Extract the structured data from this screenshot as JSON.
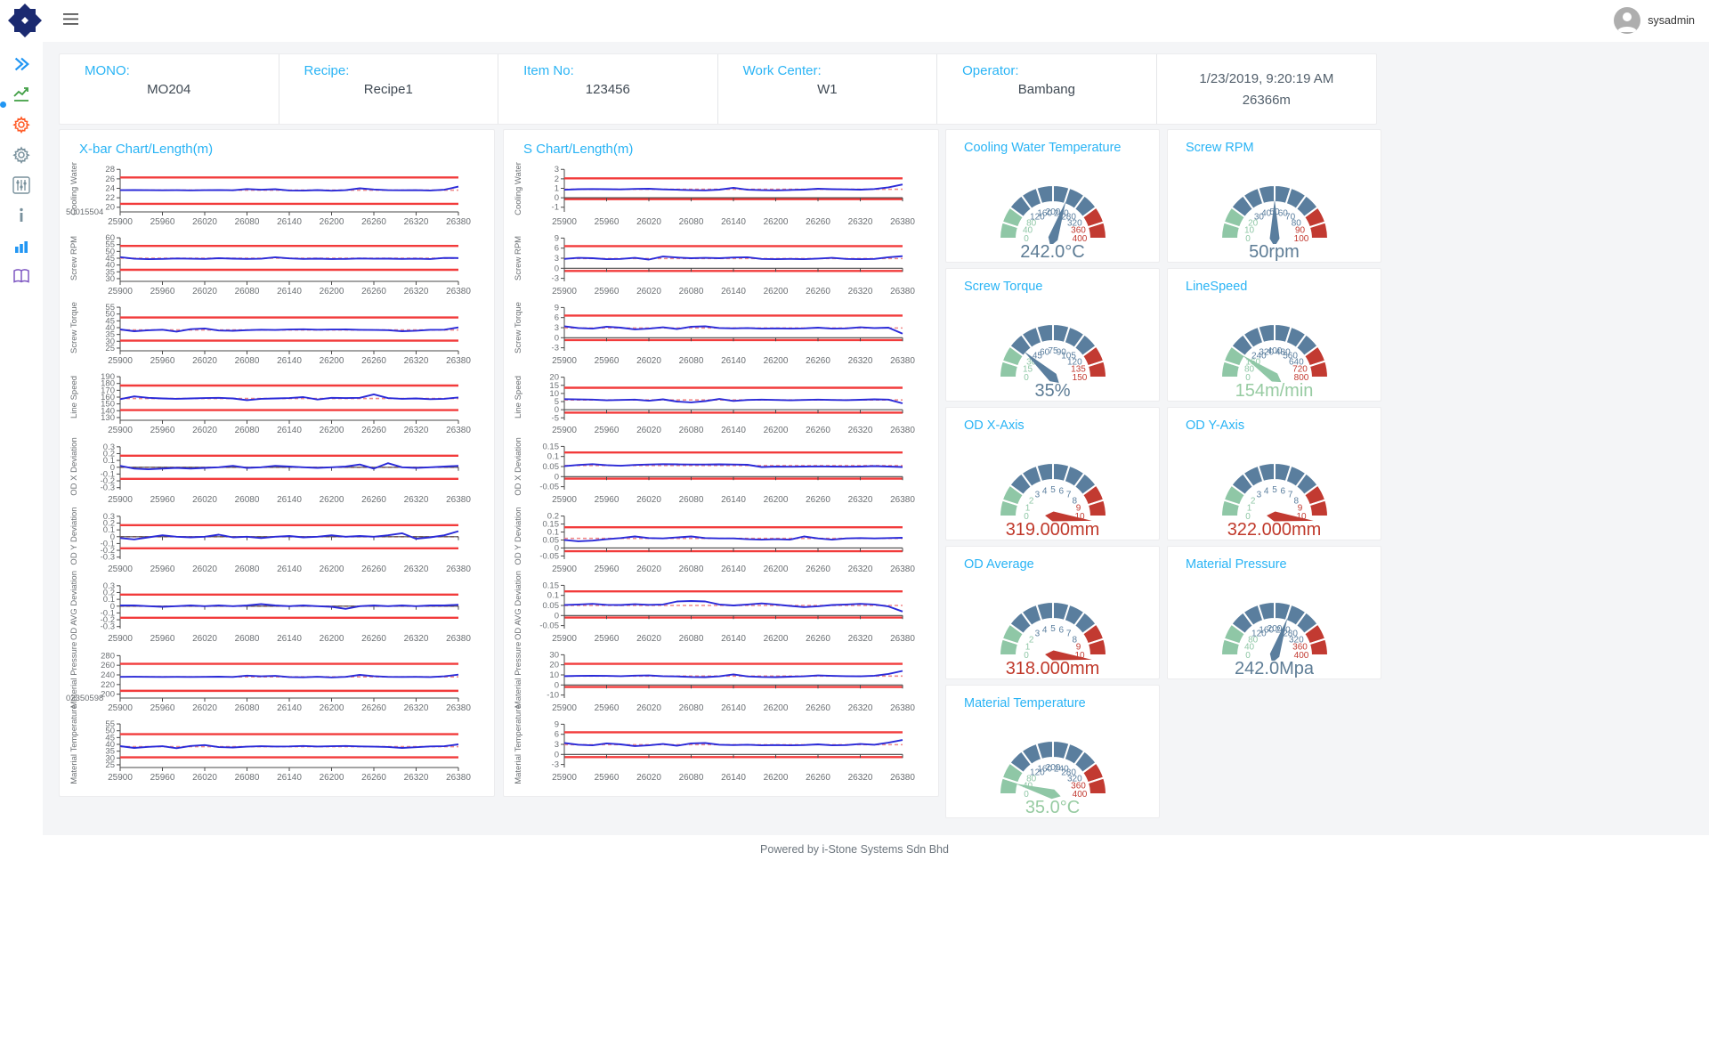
{
  "header": {
    "user": "sysadmin",
    "icons": [
      "hamburger-menu-icon",
      "avatar-icon"
    ]
  },
  "sidebar": {
    "icons": [
      "collapse-double-chevron-icon",
      "trend-chart-icon",
      "gear-orange-icon",
      "gear-gray-icon",
      "sliders-icon",
      "info-icon",
      "bar-chart-icon",
      "book-icon"
    ]
  },
  "info_bar": {
    "fields": [
      {
        "label": "MONO:",
        "value": "MO204"
      },
      {
        "label": "Recipe:",
        "value": "Recipe1"
      },
      {
        "label": "Item No:",
        "value": "123456"
      },
      {
        "label": "Work Center:",
        "value": "W1"
      },
      {
        "label": "Operator:",
        "value": "Bambang"
      }
    ],
    "datetime": "1/23/2019, 9:20:19 AM",
    "length": "26366m"
  },
  "footer": {
    "text": "Powered by i-Stone Systems Sdn Bhd"
  },
  "colors": {
    "accent_cyan": "#2ab4f5",
    "line_blue": "#2a2ad8",
    "limit_red": "#f23b3b",
    "center_red": "#f08a8a",
    "axis_dark": "#4a4a4a",
    "tick_text": "#6b6f73",
    "gauge_green": "#8fc7a6",
    "gauge_slate": "#5a7e9e",
    "gauge_red": "#c23a31",
    "value_slate": "#5d7c95",
    "value_green": "#97cba2",
    "value_red": "#c0392b"
  },
  "chart_data": {
    "type": "line",
    "x_ticks": [
      25900,
      25960,
      26020,
      26080,
      26140,
      26200,
      26260,
      26320,
      26380
    ],
    "xbar": {
      "title": "X-bar Chart/Length(m)",
      "charts": [
        {
          "ylabel": "Cooling Water",
          "yticks": [
            28,
            26,
            24,
            22,
            20
          ],
          "ymin": 19.0,
          "ymax": 28.8,
          "ucl": 26.3,
          "lcl": 20.7,
          "center": 23.6,
          "corner_label": "50015504",
          "values": [
            23.6,
            23.62,
            23.6,
            23.58,
            23.6,
            23.57,
            23.6,
            23.63,
            23.58,
            23.85,
            23.7,
            23.8,
            23.55,
            23.5,
            23.62,
            23.48,
            23.6,
            24.0,
            23.75,
            23.6,
            23.58,
            23.6,
            23.55,
            23.7,
            24.35
          ]
        },
        {
          "ylabel": "Screw RPM",
          "yticks": [
            60,
            55,
            50,
            45,
            40,
            35,
            30
          ],
          "ymin": 28,
          "ymax": 62,
          "ucl": 54,
          "lcl": 36.5,
          "center": 45,
          "values": [
            45.8,
            44.6,
            44.3,
            44.5,
            44.8,
            44.6,
            44.5,
            45.0,
            44.7,
            44.5,
            44.6,
            45.7,
            44.9,
            44.5,
            44.7,
            44.4,
            44.5,
            44.8,
            44.6,
            44.7,
            44.5,
            44.6,
            44.4,
            45.2,
            45.1
          ]
        },
        {
          "ylabel": "Screw Torque",
          "yticks": [
            55,
            50,
            45,
            40,
            35,
            30,
            25
          ],
          "ymin": 23,
          "ymax": 57,
          "ucl": 47.5,
          "lcl": 30.5,
          "center": 38.3,
          "values": [
            38.7,
            37.4,
            38.1,
            38.5,
            37.1,
            38.9,
            39.4,
            37.9,
            37.7,
            38.2,
            38.5,
            38.3,
            38.6,
            38.8,
            38.5,
            38.6,
            38.7,
            38.4,
            38.3,
            38.2,
            37.4,
            37.8,
            38.4,
            38.5,
            40.2
          ]
        },
        {
          "ylabel": "Line Speed",
          "yticks": [
            190,
            180,
            170,
            160,
            150,
            140,
            130
          ],
          "ymin": 126,
          "ymax": 194,
          "ucl": 177,
          "lcl": 141,
          "center": 158,
          "values": [
            157,
            161,
            159,
            158,
            157.5,
            158,
            158.5,
            159,
            158,
            155.5,
            157.5,
            158,
            158.5,
            160,
            156.5,
            159,
            158.5,
            159,
            164,
            158.5,
            157.5,
            158,
            157,
            157.5,
            159.5
          ]
        },
        {
          "ylabel": "OD X Deviation",
          "yticks": [
            0.3,
            0.2,
            0.1,
            0,
            -0.1,
            -0.2,
            -0.3
          ],
          "ymin": -0.33,
          "ymax": 0.35,
          "ucl": 0.17,
          "lcl": -0.17,
          "center": 0,
          "values": [
            0.02,
            -0.02,
            -0.03,
            -0.02,
            -0.01,
            -0.02,
            -0.01,
            0,
            0.02,
            -0.01,
            0,
            0.02,
            0.01,
            0,
            -0.01,
            0,
            0.01,
            0.04,
            -0.02,
            0.06,
            0,
            -0.01,
            0,
            0.01,
            0.02
          ]
        },
        {
          "ylabel": "OD Y Deviation",
          "yticks": [
            0.3,
            0.2,
            0.1,
            0,
            -0.1,
            -0.2,
            -0.3
          ],
          "ymin": -0.33,
          "ymax": 0.35,
          "ucl": 0.17,
          "lcl": -0.17,
          "center": 0,
          "values": [
            -0.02,
            -0.04,
            -0.01,
            0.02,
            0,
            -0.01,
            0,
            0.03,
            -0.01,
            0,
            -0.02,
            0,
            0.01,
            -0.01,
            0,
            0.02,
            0,
            0.01,
            0,
            0.02,
            0.05,
            -0.03,
            -0.01,
            0.02,
            0.08
          ]
        },
        {
          "ylabel": "OD AVG Deviation",
          "yticks": [
            0.3,
            0.2,
            0.1,
            0,
            -0.1,
            -0.2,
            -0.3
          ],
          "ymin": -0.33,
          "ymax": 0.35,
          "ucl": 0.17,
          "lcl": -0.17,
          "center": 0,
          "values": [
            0.01,
            0.01,
            0,
            -0.01,
            0,
            0.01,
            0,
            0.01,
            0,
            0.01,
            0.03,
            0.01,
            0,
            0.01,
            0,
            -0.01,
            -0.04,
            0,
            0.01,
            0,
            0.01,
            0,
            0.01,
            0.01,
            0.02
          ]
        },
        {
          "ylabel": "Material Pressure",
          "yticks": [
            280,
            260,
            240,
            220,
            200
          ],
          "ymin": 192,
          "ymax": 288,
          "ucl": 263,
          "lcl": 207,
          "center": 236,
          "corner_label": "02350598",
          "values": [
            236,
            236.2,
            236,
            235.8,
            236,
            235.7,
            236,
            236.3,
            235.8,
            238.5,
            237,
            238,
            235.5,
            235,
            236.2,
            234.8,
            236,
            240,
            237.5,
            236,
            235.8,
            236,
            235.5,
            237,
            240.5
          ]
        },
        {
          "ylabel": "Material Temperature",
          "yticks": [
            55,
            50,
            45,
            40,
            35,
            30,
            25
          ],
          "ymin": 23,
          "ymax": 57,
          "ucl": 47.5,
          "lcl": 30.5,
          "center": 38.3,
          "values": [
            38.7,
            37.4,
            38.2,
            38.6,
            37.2,
            38.8,
            39.5,
            38.0,
            37.7,
            38.3,
            38.6,
            38.4,
            38.5,
            38.8,
            38.4,
            38.6,
            38.8,
            38.5,
            38.3,
            38.1,
            37.4,
            37.9,
            38.5,
            38.6,
            40.0
          ]
        }
      ]
    },
    "schart": {
      "title": "S Chart/Length(m)",
      "charts": [
        {
          "ylabel": "Cooling Water",
          "yticks": [
            3,
            2,
            1,
            0,
            -1
          ],
          "ymin": -1.5,
          "ymax": 3.4,
          "ucl": 2.05,
          "lcl": -0.15,
          "center": 0.9,
          "values": [
            0.85,
            0.9,
            0.92,
            0.9,
            0.88,
            0.93,
            0.95,
            0.88,
            0.85,
            0.8,
            0.78,
            0.86,
            1.05,
            0.85,
            0.8,
            0.78,
            0.82,
            0.86,
            0.95,
            0.9,
            0.88,
            0.86,
            0.92,
            1.1,
            1.4
          ]
        },
        {
          "ylabel": "Screw RPM",
          "yticks": [
            9,
            6,
            3,
            0,
            -3
          ],
          "ymin": -3.9,
          "ymax": 9.9,
          "ucl": 6.6,
          "lcl": -0.8,
          "center": 2.9,
          "values": [
            2.8,
            3.1,
            3.0,
            2.7,
            2.8,
            3.1,
            2.6,
            3.5,
            3.2,
            3.0,
            3.1,
            3.0,
            3.2,
            3.3,
            2.8,
            2.7,
            2.8,
            2.7,
            2.9,
            3.1,
            2.8,
            2.7,
            2.8,
            3.3,
            3.6
          ]
        },
        {
          "ylabel": "Screw Torque",
          "yticks": [
            9,
            6,
            3,
            0,
            -3
          ],
          "ymin": -3.9,
          "ymax": 9.9,
          "ucl": 6.6,
          "lcl": -0.7,
          "center": 2.9,
          "values": [
            3.4,
            2.9,
            2.7,
            3.3,
            3.0,
            2.5,
            2.7,
            3.1,
            2.6,
            3.3,
            3.4,
            2.9,
            2.8,
            2.9,
            2.7,
            2.8,
            2.7,
            2.8,
            3.0,
            2.7,
            2.8,
            3.1,
            2.9,
            3.0,
            1.2
          ]
        },
        {
          "ylabel": "Line Speed",
          "yticks": [
            20,
            15,
            10,
            5,
            0,
            -5
          ],
          "ymin": -6.5,
          "ymax": 22,
          "ucl": 13.5,
          "lcl": -1.8,
          "center": 6,
          "values": [
            6.5,
            6.3,
            6.2,
            5.8,
            6.0,
            6.2,
            5.5,
            6.4,
            5.0,
            4.5,
            5.3,
            6.6,
            5.4,
            6.0,
            6.2,
            6.0,
            5.8,
            6.0,
            6.2,
            6.0,
            5.9,
            6.1,
            6.4,
            6.2,
            3.9
          ]
        },
        {
          "ylabel": "OD X Deviation",
          "yticks": [
            0.15,
            0.1,
            0.05,
            0,
            -0.05
          ],
          "ymin": -0.065,
          "ymax": 0.165,
          "ucl": 0.12,
          "lcl": -0.01,
          "center": 0.055,
          "values": [
            0.052,
            0.058,
            0.062,
            0.057,
            0.054,
            0.058,
            0.06,
            0.062,
            0.061,
            0.06,
            0.06,
            0.061,
            0.06,
            0.059,
            0.048,
            0.05,
            0.049,
            0.05,
            0.051,
            0.05,
            0.049,
            0.05,
            0.052,
            0.05,
            0.048
          ]
        },
        {
          "ylabel": "OD Y Deviation",
          "yticks": [
            0.2,
            0.15,
            0.1,
            0.05,
            0,
            -0.05
          ],
          "ymin": -0.07,
          "ymax": 0.22,
          "ucl": 0.13,
          "lcl": -0.02,
          "center": 0.06,
          "values": [
            0.05,
            0.042,
            0.046,
            0.055,
            0.062,
            0.072,
            0.062,
            0.06,
            0.066,
            0.072,
            0.062,
            0.06,
            0.06,
            0.055,
            0.052,
            0.055,
            0.052,
            0.072,
            0.06,
            0.052,
            0.06,
            0.062,
            0.06,
            0.062,
            0.064
          ]
        },
        {
          "ylabel": "OD AVG Deviation",
          "yticks": [
            0.15,
            0.1,
            0.05,
            0,
            -0.05
          ],
          "ymin": -0.065,
          "ymax": 0.165,
          "ucl": 0.12,
          "lcl": -0.01,
          "center": 0.05,
          "values": [
            0.052,
            0.055,
            0.058,
            0.053,
            0.052,
            0.056,
            0.053,
            0.055,
            0.07,
            0.072,
            0.07,
            0.055,
            0.05,
            0.055,
            0.06,
            0.055,
            0.048,
            0.042,
            0.046,
            0.052,
            0.055,
            0.058,
            0.055,
            0.045,
            0.02
          ]
        },
        {
          "ylabel": "Material Pressure",
          "yticks": [
            30,
            20,
            10,
            0,
            -10
          ],
          "ymin": -13,
          "ymax": 33,
          "ucl": 21,
          "lcl": -2,
          "center": 8.8,
          "values": [
            8.8,
            9,
            9.2,
            9,
            8.8,
            9.3,
            9.5,
            8.8,
            8.5,
            8,
            7.8,
            8.6,
            10.5,
            8.5,
            8,
            7.8,
            8.2,
            8.6,
            9.5,
            9,
            8.8,
            8.6,
            9.2,
            11,
            14
          ]
        },
        {
          "ylabel": "Material Temperature",
          "yticks": [
            9,
            6,
            3,
            0,
            -3
          ],
          "ymin": -3.9,
          "ymax": 9.9,
          "ucl": 6.6,
          "lcl": -0.8,
          "center": 2.9,
          "values": [
            3.4,
            2.9,
            2.7,
            3.3,
            3.0,
            2.5,
            2.7,
            3.1,
            2.6,
            3.3,
            3.4,
            2.9,
            2.8,
            2.9,
            2.7,
            2.8,
            2.7,
            2.8,
            3.0,
            2.7,
            2.8,
            3.1,
            2.9,
            3.5,
            4.3
          ]
        }
      ]
    },
    "gauges": [
      {
        "title": "Cooling Water Temperature",
        "min": 0,
        "max": 400,
        "labels": [
          0,
          40,
          80,
          120,
          160,
          200,
          240,
          280,
          320,
          360,
          400
        ],
        "value": 242.0,
        "value_text": "242.0°C",
        "color": "slate",
        "overflow": false
      },
      {
        "title": "Screw RPM",
        "min": 0,
        "max": 100,
        "labels": [
          0,
          10,
          20,
          30,
          40,
          50,
          60,
          70,
          80,
          90,
          100
        ],
        "value": 50,
        "value_text": "50rpm",
        "color": "slate",
        "overflow": false
      },
      {
        "title": "Screw Torque",
        "min": 0,
        "max": 150,
        "labels": [
          0,
          15,
          30,
          45,
          60,
          75,
          90,
          105,
          120,
          135,
          150
        ],
        "value": 35,
        "value_text": "35%",
        "color": "slate",
        "overflow": false
      },
      {
        "title": "LineSpeed",
        "min": 0,
        "max": 800,
        "labels": [
          0,
          80,
          160,
          240,
          320,
          400,
          480,
          560,
          640,
          720,
          800
        ],
        "value": 154,
        "value_text": "154m/min",
        "color": "green",
        "overflow": false
      },
      {
        "title": "OD X-Axis",
        "min": 0,
        "max": 10,
        "labels": [
          0,
          1,
          2,
          3,
          4,
          5,
          6,
          7,
          8,
          9,
          10
        ],
        "value": 319.0,
        "value_text": "319.000mm",
        "color": "red",
        "overflow": true
      },
      {
        "title": "OD Y-Axis",
        "min": 0,
        "max": 10,
        "labels": [
          0,
          1,
          2,
          3,
          4,
          5,
          6,
          7,
          8,
          9,
          10
        ],
        "value": 322.0,
        "value_text": "322.000mm",
        "color": "red",
        "overflow": true
      },
      {
        "title": "OD Average",
        "min": 0,
        "max": 10,
        "labels": [
          0,
          1,
          2,
          3,
          4,
          5,
          6,
          7,
          8,
          9,
          10
        ],
        "value": 318.0,
        "value_text": "318.000mm",
        "color": "red",
        "overflow": true
      },
      {
        "title": "Material Pressure",
        "min": 0,
        "max": 400,
        "labels": [
          0,
          40,
          80,
          120,
          160,
          200,
          240,
          280,
          320,
          360,
          400
        ],
        "value": 242.0,
        "value_text": "242.0Mpa",
        "color": "slate",
        "overflow": false
      },
      {
        "title": "Material Temperature",
        "min": 0,
        "max": 400,
        "labels": [
          0,
          40,
          80,
          120,
          160,
          200,
          240,
          280,
          320,
          360,
          400
        ],
        "value": 35.0,
        "value_text": "35.0°C",
        "color": "green",
        "overflow": false
      }
    ]
  }
}
